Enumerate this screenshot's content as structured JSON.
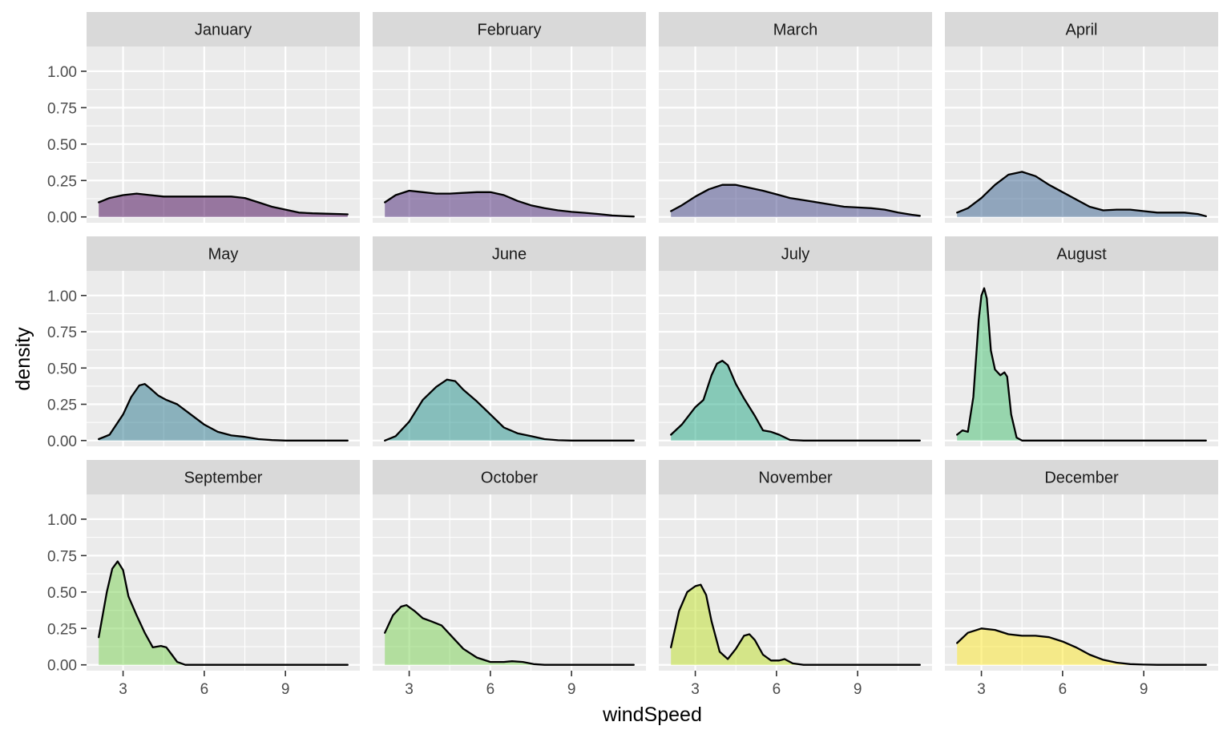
{
  "chart_data": {
    "type": "area",
    "subtype": "faceted density plot",
    "xlabel": "windSpeed",
    "ylabel": "density",
    "xlim": [
      1.65,
      11.75
    ],
    "ylim": [
      -0.04,
      1.17
    ],
    "xticks": [
      3,
      6,
      9
    ],
    "yticks": [
      0,
      0.25,
      0.5,
      0.75,
      1.0
    ],
    "xtick_labels": [
      "3",
      "6",
      "9"
    ],
    "ytick_labels": [
      "0.00",
      "0.25",
      "0.50",
      "0.75",
      "1.00"
    ],
    "facet_rows": 3,
    "facet_cols": 4,
    "grid": true,
    "legend": "none",
    "line_color": "#000000",
    "panels": [
      {
        "name": "January",
        "color": "#440154",
        "x": [
          2.1,
          2.5,
          3.0,
          3.5,
          4.0,
          4.5,
          5.0,
          5.5,
          6.0,
          6.5,
          7.0,
          7.5,
          8.0,
          8.5,
          9.0,
          9.5,
          10.0,
          10.5,
          11.0,
          11.3
        ],
        "y": [
          0.1,
          0.13,
          0.15,
          0.16,
          0.15,
          0.14,
          0.14,
          0.14,
          0.14,
          0.14,
          0.14,
          0.13,
          0.1,
          0.07,
          0.05,
          0.03,
          0.025,
          0.022,
          0.02,
          0.018
        ]
      },
      {
        "name": "February",
        "color": "#482475",
        "x": [
          2.1,
          2.5,
          3.0,
          3.5,
          4.0,
          4.5,
          5.0,
          5.5,
          6.0,
          6.5,
          7.0,
          7.5,
          8.0,
          8.5,
          9.0,
          9.5,
          10.0,
          10.5,
          11.0,
          11.3
        ],
        "y": [
          0.1,
          0.15,
          0.18,
          0.17,
          0.16,
          0.16,
          0.165,
          0.17,
          0.17,
          0.15,
          0.11,
          0.08,
          0.06,
          0.045,
          0.035,
          0.028,
          0.02,
          0.01,
          0.005,
          0.003
        ]
      },
      {
        "name": "March",
        "color": "#414487",
        "x": [
          2.1,
          2.5,
          3.0,
          3.5,
          4.0,
          4.5,
          5.0,
          5.5,
          6.0,
          6.5,
          7.0,
          7.5,
          8.0,
          8.5,
          9.0,
          9.5,
          10.0,
          10.5,
          11.0,
          11.3
        ],
        "y": [
          0.04,
          0.08,
          0.14,
          0.19,
          0.22,
          0.22,
          0.2,
          0.18,
          0.155,
          0.13,
          0.115,
          0.1,
          0.085,
          0.07,
          0.065,
          0.06,
          0.05,
          0.03,
          0.015,
          0.008
        ]
      },
      {
        "name": "April",
        "color": "#355F8D",
        "x": [
          2.1,
          2.5,
          3.0,
          3.5,
          4.0,
          4.5,
          5.0,
          5.5,
          6.0,
          6.5,
          7.0,
          7.5,
          8.0,
          8.5,
          9.0,
          9.5,
          10.0,
          10.5,
          11.0,
          11.3
        ],
        "y": [
          0.03,
          0.06,
          0.13,
          0.22,
          0.29,
          0.31,
          0.28,
          0.22,
          0.17,
          0.12,
          0.07,
          0.045,
          0.05,
          0.05,
          0.04,
          0.03,
          0.03,
          0.03,
          0.02,
          0.005
        ]
      },
      {
        "name": "May",
        "color": "#2A788E",
        "x": [
          2.1,
          2.5,
          3.0,
          3.3,
          3.6,
          3.8,
          4.0,
          4.3,
          4.6,
          5.0,
          5.5,
          6.0,
          6.5,
          7.0,
          7.5,
          8.0,
          8.5,
          9.0,
          10.0,
          11.0,
          11.3
        ],
        "y": [
          0.01,
          0.04,
          0.18,
          0.3,
          0.38,
          0.39,
          0.36,
          0.31,
          0.28,
          0.25,
          0.18,
          0.11,
          0.06,
          0.035,
          0.025,
          0.01,
          0.003,
          0.0,
          0.0,
          0.0,
          0.0
        ]
      },
      {
        "name": "June",
        "color": "#21918C",
        "x": [
          2.1,
          2.5,
          3.0,
          3.5,
          4.0,
          4.4,
          4.7,
          5.0,
          5.5,
          6.0,
          6.5,
          7.0,
          7.5,
          8.0,
          8.5,
          9.0,
          10.0,
          11.0,
          11.3
        ],
        "y": [
          0.0,
          0.03,
          0.13,
          0.28,
          0.37,
          0.42,
          0.41,
          0.35,
          0.27,
          0.18,
          0.09,
          0.05,
          0.03,
          0.01,
          0.002,
          0.0,
          0.0,
          0.0,
          0.0
        ]
      },
      {
        "name": "July",
        "color": "#22A884",
        "x": [
          2.1,
          2.5,
          3.0,
          3.3,
          3.6,
          3.8,
          4.0,
          4.2,
          4.5,
          4.8,
          5.2,
          5.5,
          5.8,
          6.1,
          6.5,
          7.0,
          8.0,
          9.0,
          10.0,
          11.0,
          11.3
        ],
        "y": [
          0.04,
          0.11,
          0.23,
          0.28,
          0.45,
          0.53,
          0.55,
          0.52,
          0.39,
          0.29,
          0.17,
          0.07,
          0.06,
          0.04,
          0.004,
          0.0,
          0.0,
          0.0,
          0.0,
          0.0,
          0.0
        ]
      },
      {
        "name": "August",
        "color": "#44BF70",
        "x": [
          2.1,
          2.3,
          2.5,
          2.7,
          2.9,
          3.0,
          3.1,
          3.2,
          3.35,
          3.5,
          3.7,
          3.85,
          3.95,
          4.1,
          4.3,
          4.5,
          5.0,
          6.0,
          7.0,
          8.0,
          9.0,
          10.0,
          11.0,
          11.3
        ],
        "y": [
          0.04,
          0.07,
          0.06,
          0.3,
          0.83,
          1.0,
          1.05,
          0.98,
          0.62,
          0.49,
          0.45,
          0.47,
          0.44,
          0.18,
          0.02,
          0.0,
          0.0,
          0.0,
          0.0,
          0.0,
          0.0,
          0.0,
          0.0,
          0.0
        ]
      },
      {
        "name": "September",
        "color": "#7AD151",
        "x": [
          2.1,
          2.4,
          2.6,
          2.8,
          3.0,
          3.2,
          3.5,
          3.8,
          4.1,
          4.4,
          4.6,
          4.8,
          5.0,
          5.3,
          5.6,
          6.0,
          7.0,
          8.0,
          9.0,
          10.0,
          11.0,
          11.3
        ],
        "y": [
          0.19,
          0.5,
          0.66,
          0.71,
          0.65,
          0.47,
          0.34,
          0.22,
          0.12,
          0.13,
          0.12,
          0.07,
          0.02,
          0.0,
          0.0,
          0.0,
          0.0,
          0.0,
          0.0,
          0.0,
          0.0,
          0.0
        ]
      },
      {
        "name": "October",
        "color": "#7AD151",
        "x": [
          2.1,
          2.4,
          2.7,
          2.9,
          3.2,
          3.5,
          3.8,
          4.2,
          4.6,
          5.0,
          5.5,
          6.0,
          6.5,
          6.8,
          7.2,
          7.6,
          8.0,
          9.0,
          10.0,
          11.0,
          11.3
        ],
        "y": [
          0.22,
          0.34,
          0.4,
          0.41,
          0.37,
          0.32,
          0.3,
          0.27,
          0.19,
          0.11,
          0.05,
          0.02,
          0.02,
          0.025,
          0.02,
          0.005,
          0.0,
          0.0,
          0.0,
          0.0,
          0.0
        ]
      },
      {
        "name": "November",
        "color": "#BDDF26",
        "x": [
          2.1,
          2.4,
          2.7,
          3.0,
          3.2,
          3.4,
          3.6,
          3.9,
          4.2,
          4.5,
          4.8,
          5.0,
          5.2,
          5.5,
          5.8,
          6.1,
          6.3,
          6.6,
          7.0,
          8.0,
          9.0,
          10.0,
          11.0,
          11.3
        ],
        "y": [
          0.12,
          0.37,
          0.5,
          0.54,
          0.55,
          0.48,
          0.3,
          0.09,
          0.04,
          0.11,
          0.2,
          0.21,
          0.17,
          0.07,
          0.03,
          0.03,
          0.04,
          0.01,
          0.0,
          0.0,
          0.0,
          0.0,
          0.0,
          0.0
        ]
      },
      {
        "name": "December",
        "color": "#FDE725",
        "x": [
          2.1,
          2.5,
          3.0,
          3.5,
          4.0,
          4.5,
          5.0,
          5.5,
          6.0,
          6.5,
          7.0,
          7.5,
          8.0,
          8.5,
          9.0,
          9.5,
          10.0,
          11.0,
          11.3
        ],
        "y": [
          0.15,
          0.22,
          0.25,
          0.24,
          0.21,
          0.2,
          0.2,
          0.19,
          0.16,
          0.12,
          0.07,
          0.035,
          0.015,
          0.005,
          0.002,
          0.0,
          0.0,
          0.0,
          0.0
        ]
      }
    ]
  }
}
